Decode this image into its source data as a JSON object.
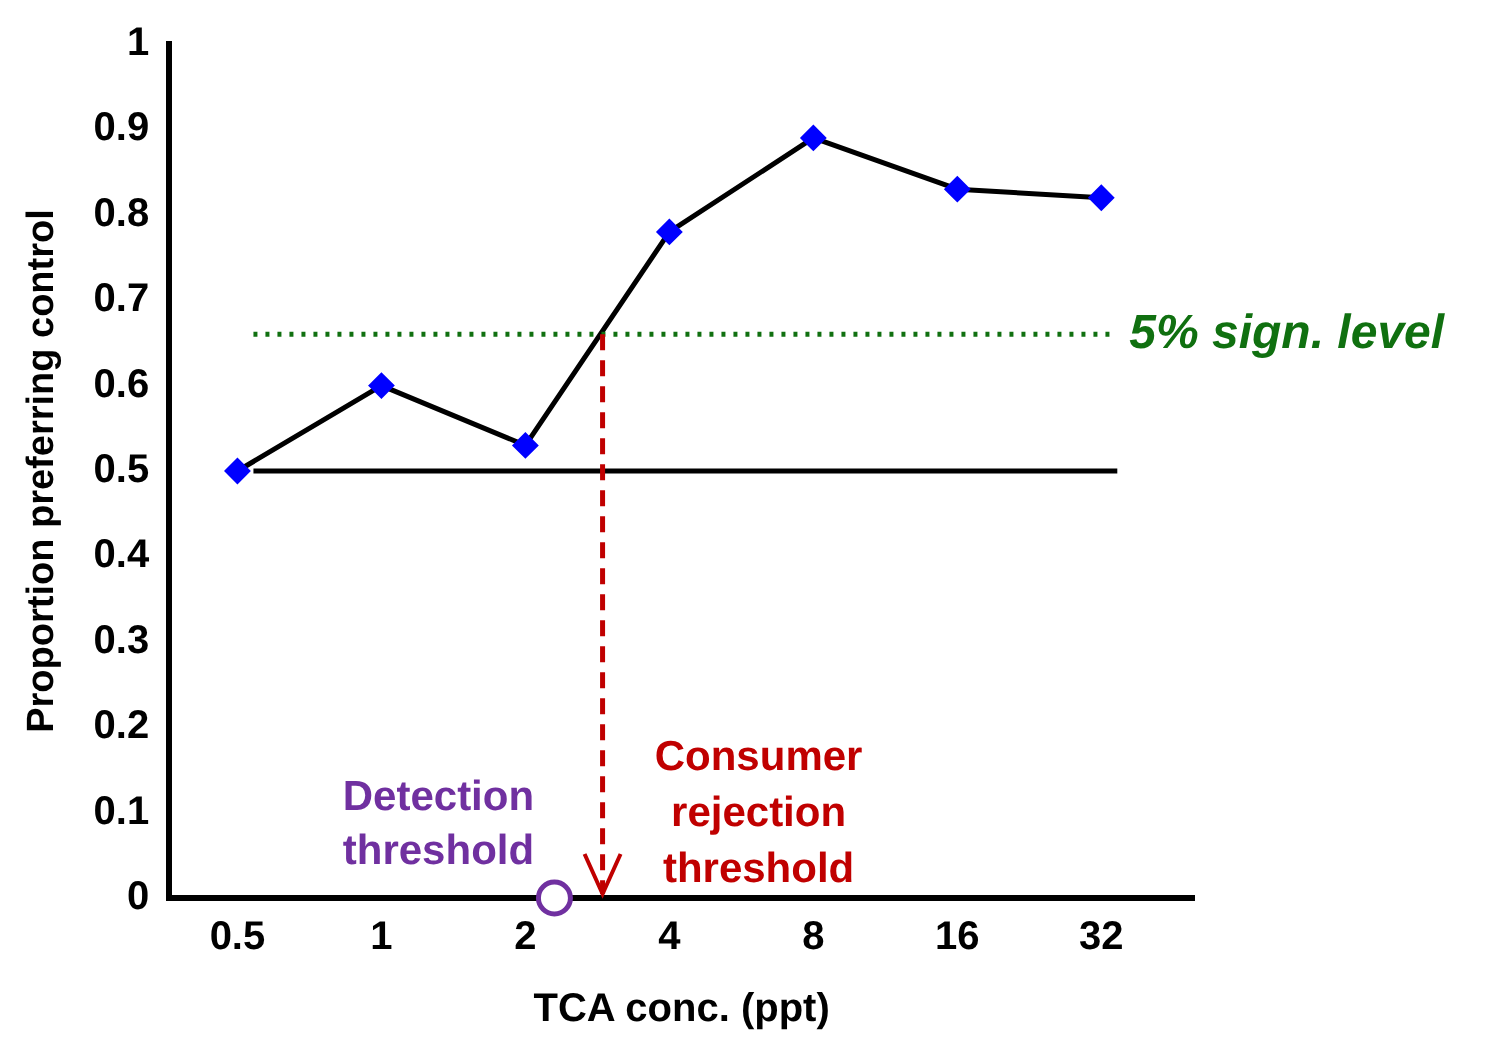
{
  "chart_data": {
    "type": "line",
    "xlabel": "TCA conc. (ppt)",
    "ylabel": "Proportion preferring control",
    "log": "x",
    "x": [
      0.5,
      1,
      2,
      4,
      8,
      16,
      32
    ],
    "xlim": [
      0.36,
      50
    ],
    "xticks": [
      0.5,
      1,
      2,
      4,
      8,
      16,
      32
    ],
    "ylim": [
      0,
      1
    ],
    "yticks": [
      0,
      0.1,
      0.2,
      0.3,
      0.4,
      0.5,
      0.6,
      0.7,
      0.8,
      0.9,
      1
    ],
    "series": [
      {
        "color": "#0000ff",
        "marker": "diamond",
        "values": [
          0.5,
          0.6,
          0.53,
          0.78,
          0.89,
          0.83,
          0.82
        ]
      },
      {
        "type": "scatter",
        "name": "Detection threshold",
        "color": "#7030a0",
        "marker": "circle",
        "x": [
          2.3
        ],
        "values": [
          0
        ]
      }
    ],
    "ref_lines": [
      {
        "axis": "y",
        "value": 0.66,
        "label": "5% sign. level",
        "color": "#107010",
        "line_style": "dotted"
      },
      {
        "axis": "y",
        "value": 0.5,
        "color": "#000000",
        "line_style": "solid"
      },
      {
        "axis": "x",
        "value": 2.9,
        "label": "Consumer rejection threshold",
        "color": "#c00000",
        "line_style": "dashed"
      }
    ],
    "grid": false,
    "legend": false
  }
}
